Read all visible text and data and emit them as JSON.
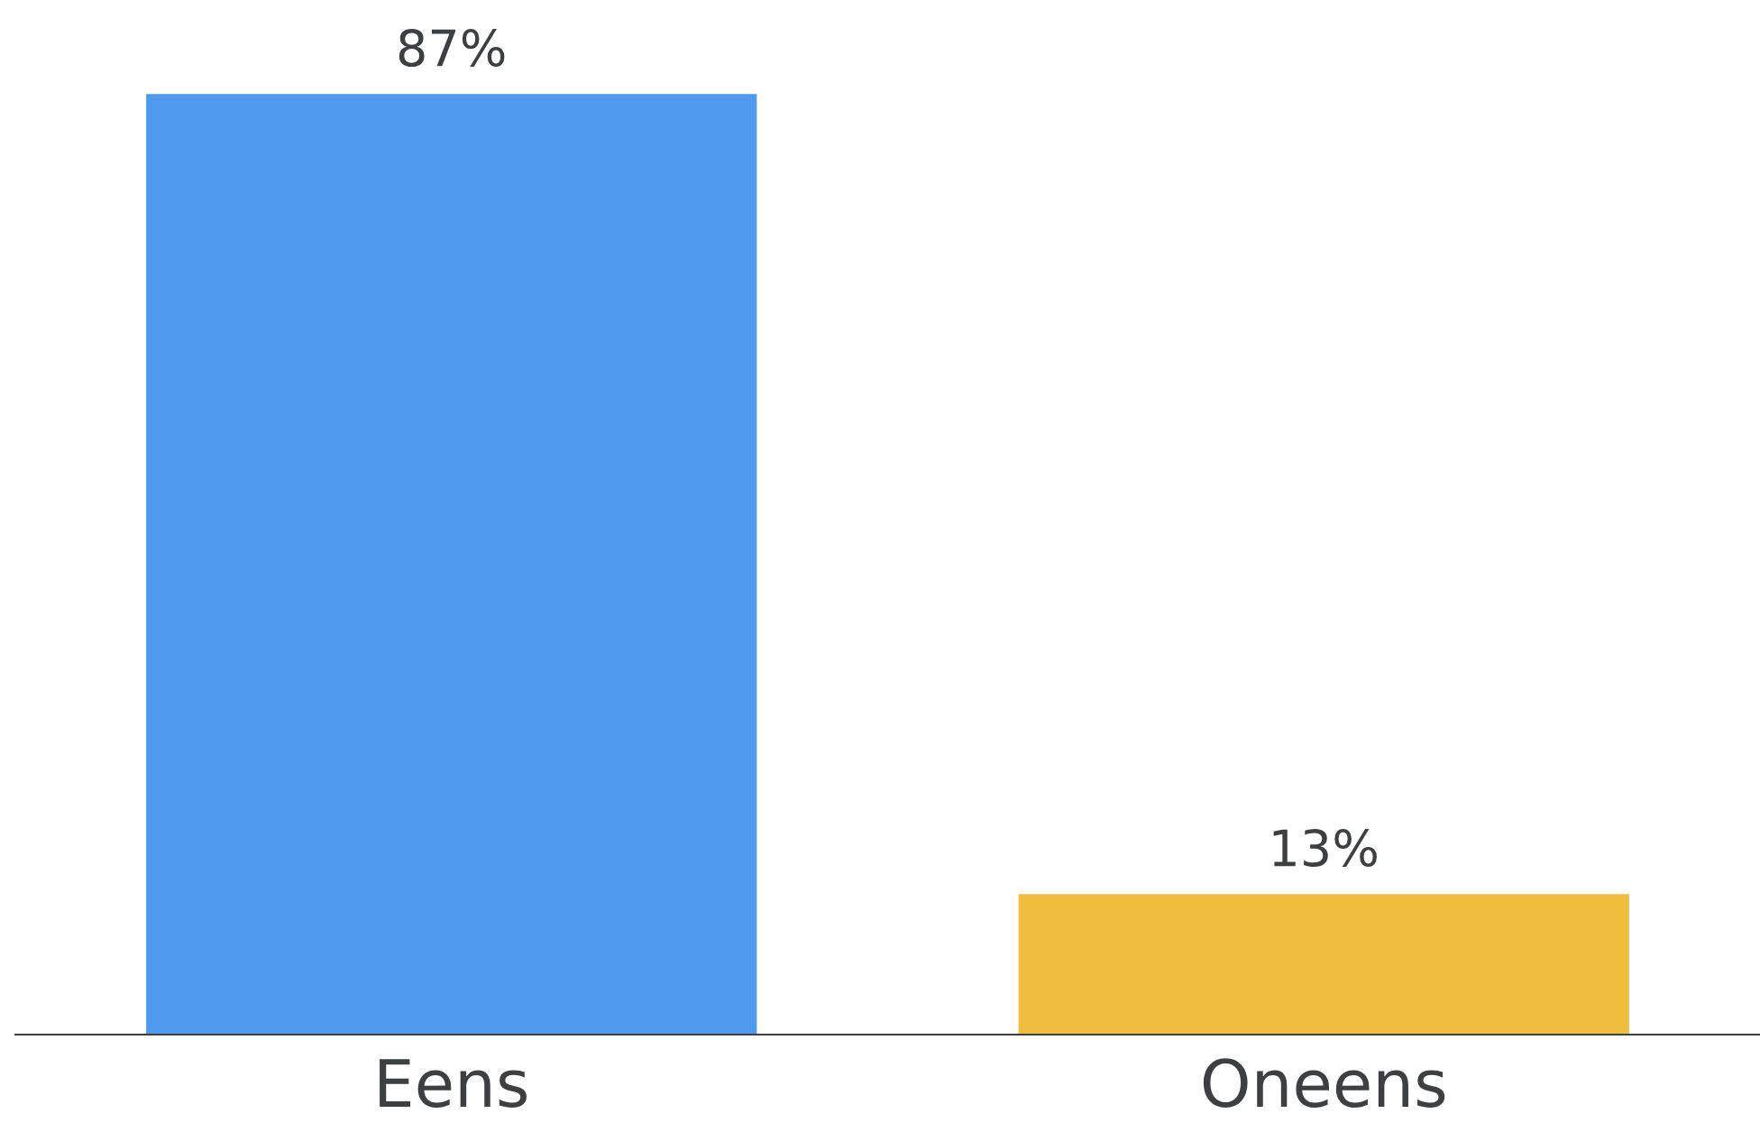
{
  "chart_data": {
    "type": "bar",
    "categories": [
      "Eens",
      "Oneens"
    ],
    "values": [
      87,
      13
    ],
    "colors": [
      "#4f99ee",
      "#f0bd3f"
    ],
    "value_labels": [
      "87%",
      "13%"
    ],
    "grid": false,
    "legend": false
  }
}
